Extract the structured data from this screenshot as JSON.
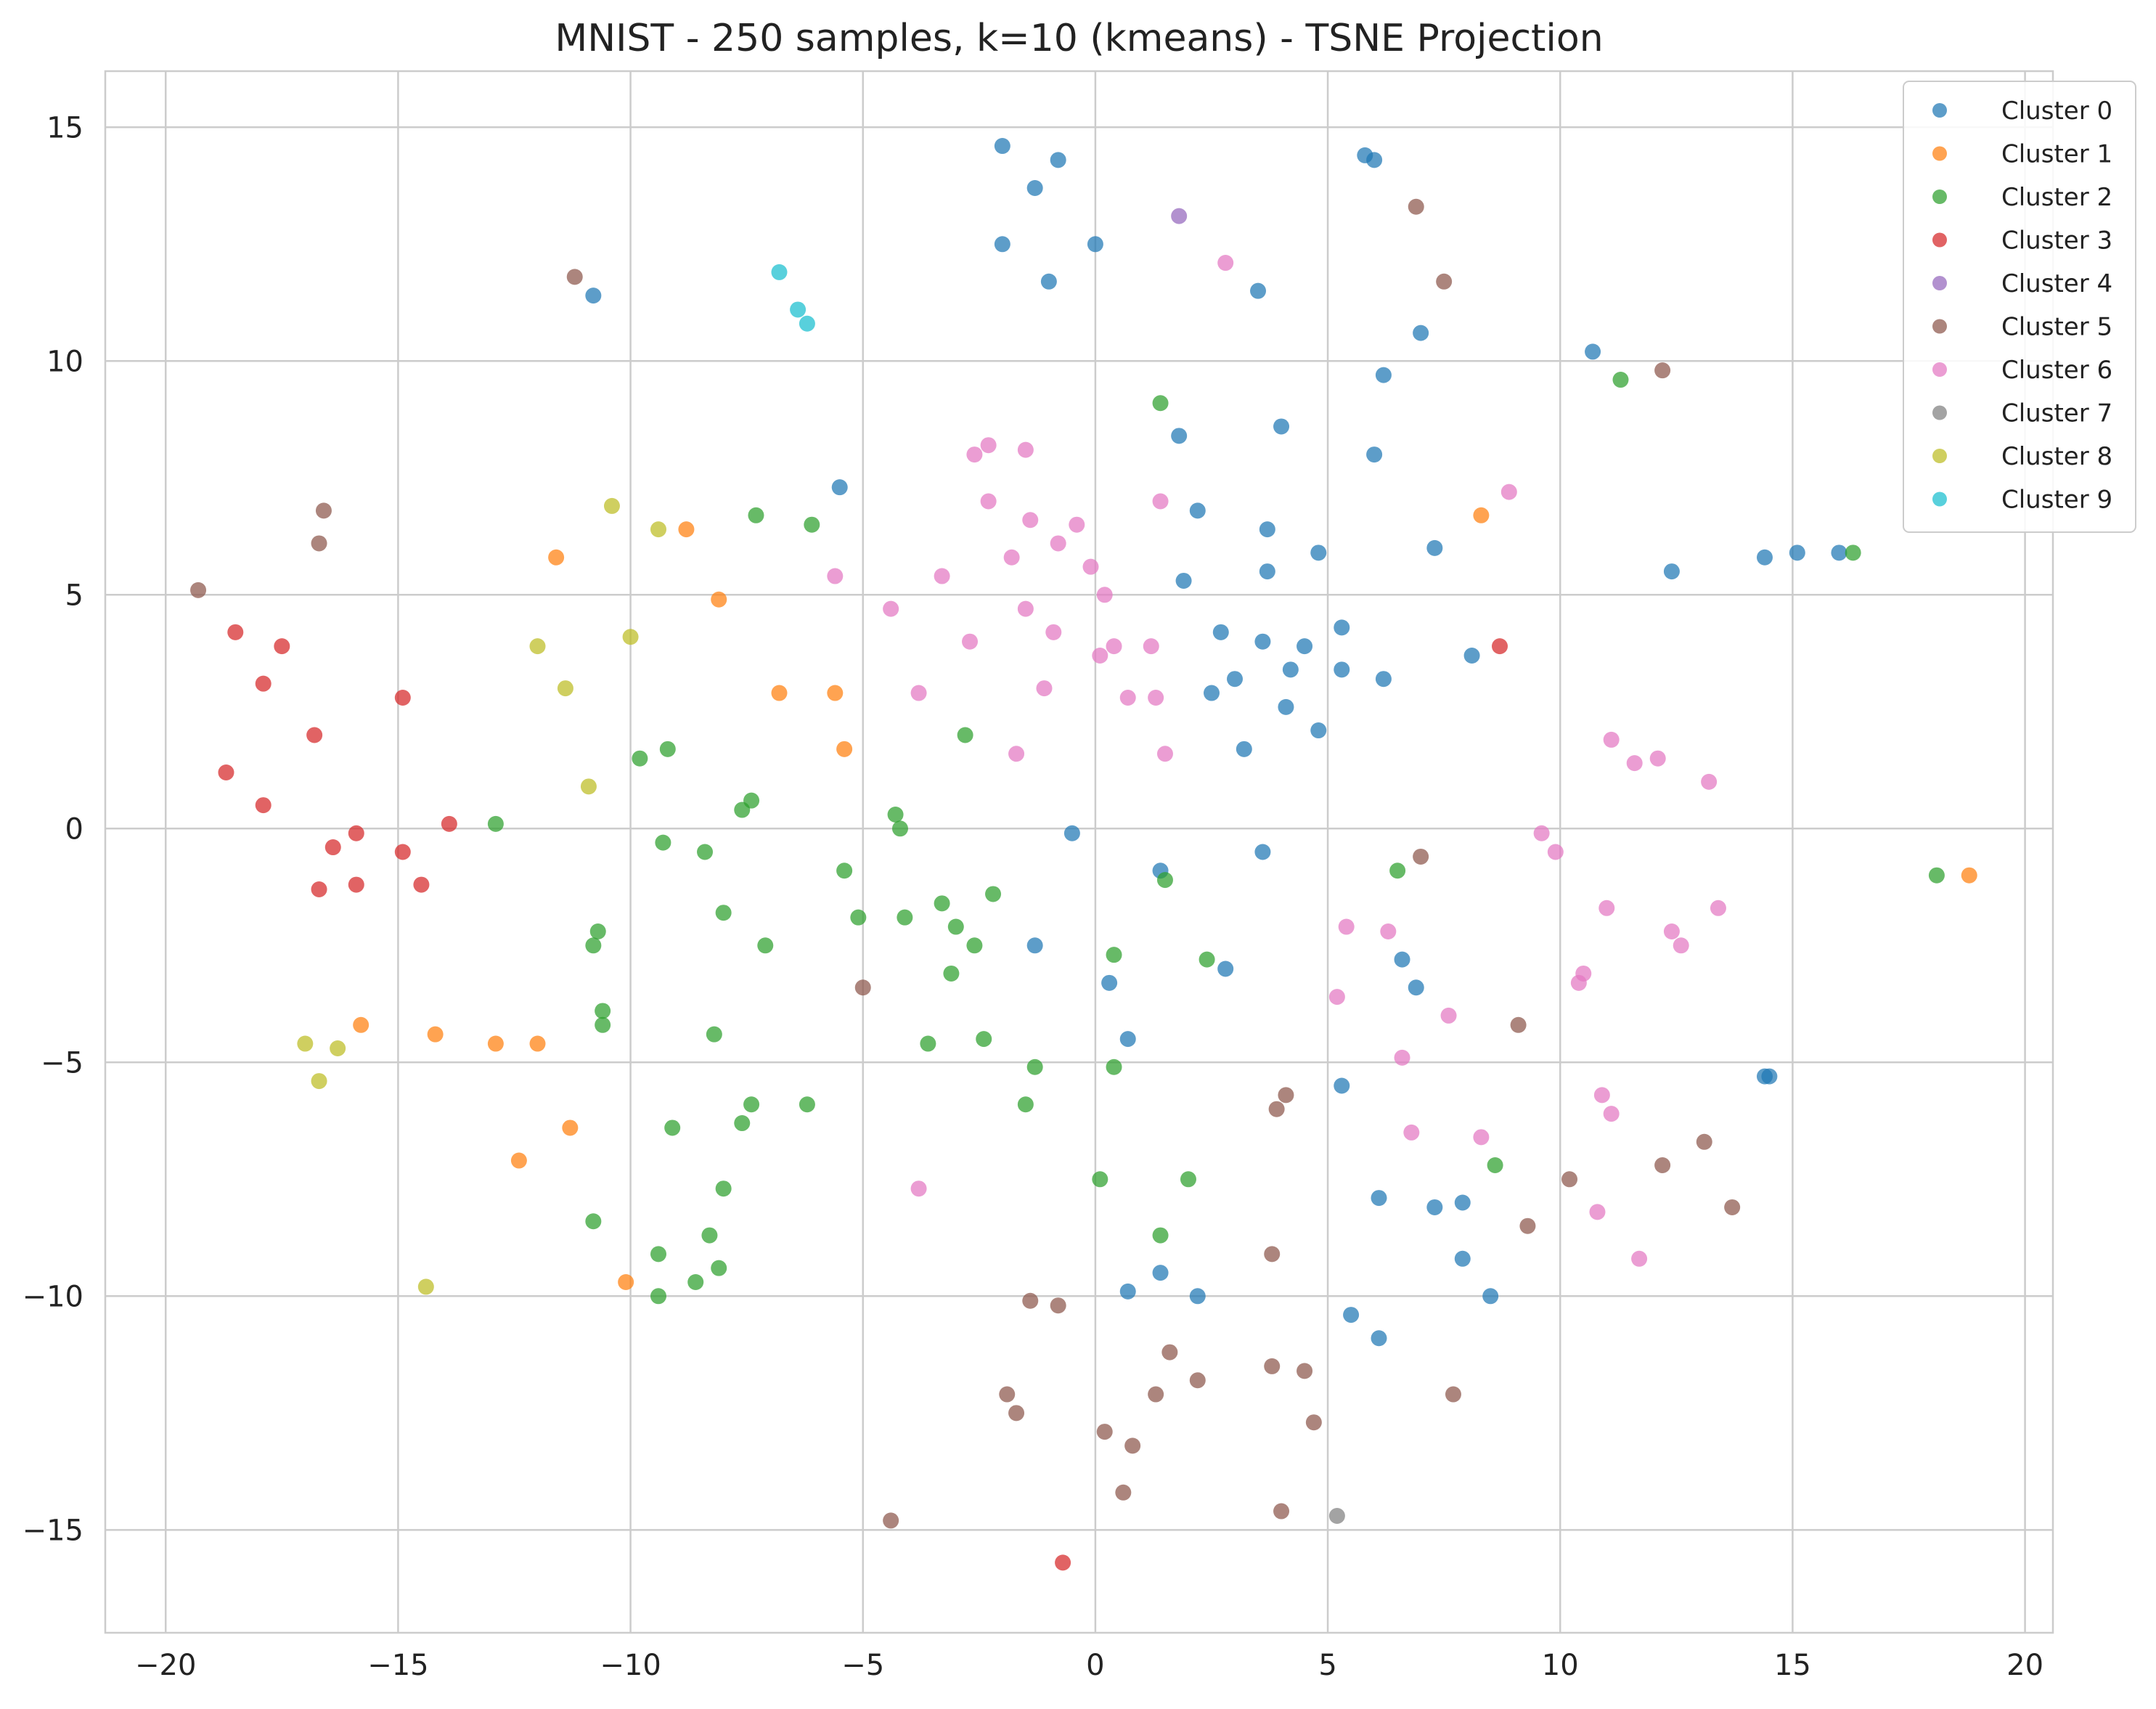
{
  "chart_data": {
    "type": "scatter",
    "title": "MNIST - 250 samples, k=10 (kmeans) - TSNE Projection",
    "xlabel": "",
    "ylabel": "",
    "xlim": [
      -21.3,
      20.6
    ],
    "ylim": [
      -17.2,
      16.2
    ],
    "xticks": [
      -20,
      -15,
      -10,
      -5,
      0,
      5,
      10,
      15,
      20
    ],
    "yticks": [
      -15,
      -10,
      -5,
      0,
      5,
      10,
      15
    ],
    "xtick_labels": [
      "−20",
      "−15",
      "−10",
      "−5",
      "0",
      "5",
      "10",
      "15",
      "20"
    ],
    "ytick_labels": [
      "−15",
      "−10",
      "−5",
      "0",
      "5",
      "10",
      "15"
    ],
    "grid": true,
    "legend_position": "top-right",
    "series": [
      {
        "name": "Cluster 0",
        "color": "#1f77b4",
        "points": [
          [
            -2.0,
            14.6
          ],
          [
            -0.8,
            14.3
          ],
          [
            -1.3,
            13.7
          ],
          [
            -2.0,
            12.5
          ],
          [
            0.0,
            12.5
          ],
          [
            -1.0,
            11.7
          ],
          [
            -10.8,
            11.4
          ],
          [
            -5.5,
            7.3
          ],
          [
            5.8,
            14.4
          ],
          [
            6.0,
            14.3
          ],
          [
            3.5,
            11.5
          ],
          [
            7.0,
            10.6
          ],
          [
            6.2,
            9.7
          ],
          [
            4.0,
            8.6
          ],
          [
            1.8,
            8.4
          ],
          [
            6.0,
            8.0
          ],
          [
            2.2,
            6.8
          ],
          [
            3.7,
            6.4
          ],
          [
            7.3,
            6.0
          ],
          [
            4.8,
            5.9
          ],
          [
            3.7,
            5.5
          ],
          [
            1.9,
            5.3
          ],
          [
            5.3,
            4.3
          ],
          [
            2.7,
            4.2
          ],
          [
            3.6,
            4.0
          ],
          [
            4.5,
            3.9
          ],
          [
            8.1,
            3.7
          ],
          [
            4.2,
            3.4
          ],
          [
            5.3,
            3.4
          ],
          [
            3.0,
            3.2
          ],
          [
            6.2,
            3.2
          ],
          [
            2.5,
            2.9
          ],
          [
            4.1,
            2.6
          ],
          [
            4.8,
            2.1
          ],
          [
            3.2,
            1.7
          ],
          [
            -0.5,
            -0.1
          ],
          [
            1.4,
            -0.9
          ],
          [
            3.6,
            -0.5
          ],
          [
            -1.3,
            -2.5
          ],
          [
            6.6,
            -2.8
          ],
          [
            2.8,
            -3.0
          ],
          [
            0.3,
            -3.3
          ],
          [
            6.9,
            -3.4
          ],
          [
            0.7,
            -4.5
          ],
          [
            5.3,
            -5.5
          ],
          [
            6.1,
            -7.9
          ],
          [
            7.3,
            -8.1
          ],
          [
            7.9,
            -8.0
          ],
          [
            7.9,
            -9.2
          ],
          [
            1.4,
            -9.5
          ],
          [
            0.7,
            -9.9
          ],
          [
            2.2,
            -10.0
          ],
          [
            8.5,
            -10.0
          ],
          [
            5.5,
            -10.4
          ],
          [
            6.1,
            -10.9
          ],
          [
            10.7,
            10.2
          ],
          [
            12.4,
            5.5
          ],
          [
            14.4,
            5.8
          ],
          [
            15.1,
            5.9
          ],
          [
            16.0,
            5.9
          ],
          [
            14.4,
            -5.3
          ],
          [
            14.5,
            -5.3
          ]
        ]
      },
      {
        "name": "Cluster 1",
        "color": "#ff7f0e",
        "points": [
          [
            -11.6,
            5.8
          ],
          [
            -8.8,
            6.4
          ],
          [
            -8.1,
            4.9
          ],
          [
            -6.8,
            2.9
          ],
          [
            -5.6,
            2.9
          ],
          [
            -5.4,
            1.7
          ],
          [
            8.3,
            6.7
          ],
          [
            -15.8,
            -4.2
          ],
          [
            -14.2,
            -4.4
          ],
          [
            -12.9,
            -4.6
          ],
          [
            -12.0,
            -4.6
          ],
          [
            -11.3,
            -6.4
          ],
          [
            -12.4,
            -7.1
          ],
          [
            -10.1,
            -9.7
          ],
          [
            18.8,
            -1.0
          ]
        ]
      },
      {
        "name": "Cluster 2",
        "color": "#2ca02c",
        "points": [
          [
            1.4,
            9.1
          ],
          [
            -7.3,
            6.7
          ],
          [
            -6.1,
            6.5
          ],
          [
            -2.8,
            2.0
          ],
          [
            -9.8,
            1.5
          ],
          [
            -9.2,
            1.7
          ],
          [
            -7.4,
            0.6
          ],
          [
            -7.6,
            0.4
          ],
          [
            -4.3,
            0.3
          ],
          [
            -4.2,
            0.0
          ],
          [
            -12.9,
            0.1
          ],
          [
            -9.3,
            -0.3
          ],
          [
            -8.4,
            -0.5
          ],
          [
            -5.4,
            -0.9
          ],
          [
            -3.3,
            -1.6
          ],
          [
            -2.2,
            -1.4
          ],
          [
            -8.0,
            -1.8
          ],
          [
            -5.1,
            -1.9
          ],
          [
            -4.1,
            -1.9
          ],
          [
            -3.0,
            -2.1
          ],
          [
            -7.1,
            -2.5
          ],
          [
            -2.6,
            -2.5
          ],
          [
            -10.7,
            -2.2
          ],
          [
            -10.8,
            -2.5
          ],
          [
            -3.1,
            -3.1
          ],
          [
            -10.6,
            -3.9
          ],
          [
            -10.6,
            -4.2
          ],
          [
            -8.2,
            -4.4
          ],
          [
            -3.6,
            -4.6
          ],
          [
            -2.4,
            -4.5
          ],
          [
            -1.3,
            -5.1
          ],
          [
            0.4,
            -5.1
          ],
          [
            0.4,
            -2.7
          ],
          [
            2.4,
            -2.8
          ],
          [
            1.5,
            -1.1
          ],
          [
            6.5,
            -0.9
          ],
          [
            -6.2,
            -5.9
          ],
          [
            -7.4,
            -5.9
          ],
          [
            -1.5,
            -5.9
          ],
          [
            -7.6,
            -6.3
          ],
          [
            -9.1,
            -6.4
          ],
          [
            0.1,
            -7.5
          ],
          [
            2.0,
            -7.5
          ],
          [
            8.6,
            -7.2
          ],
          [
            -8.0,
            -7.7
          ],
          [
            -10.8,
            -8.4
          ],
          [
            -8.3,
            -8.7
          ],
          [
            1.4,
            -8.7
          ],
          [
            -9.4,
            -9.1
          ],
          [
            -8.1,
            -9.4
          ],
          [
            -8.6,
            -9.7
          ],
          [
            -9.4,
            -10.0
          ],
          [
            11.3,
            9.6
          ],
          [
            16.3,
            5.9
          ],
          [
            18.1,
            -1.0
          ]
        ]
      },
      {
        "name": "Cluster 3",
        "color": "#d62728",
        "points": [
          [
            -18.5,
            4.2
          ],
          [
            -17.5,
            3.9
          ],
          [
            -17.9,
            3.1
          ],
          [
            -14.9,
            2.8
          ],
          [
            -16.8,
            2.0
          ],
          [
            -18.7,
            1.2
          ],
          [
            -17.9,
            0.5
          ],
          [
            -13.9,
            0.1
          ],
          [
            -15.9,
            -0.1
          ],
          [
            -16.4,
            -0.4
          ],
          [
            -14.9,
            -0.5
          ],
          [
            -16.7,
            -1.3
          ],
          [
            -15.9,
            -1.2
          ],
          [
            -14.5,
            -1.2
          ],
          [
            8.7,
            3.9
          ],
          [
            -0.7,
            -15.7
          ]
        ]
      },
      {
        "name": "Cluster 4",
        "color": "#9467bd",
        "points": [
          [
            1.8,
            13.1
          ]
        ]
      },
      {
        "name": "Cluster 5",
        "color": "#8c564b",
        "points": [
          [
            -11.2,
            11.8
          ],
          [
            -16.6,
            6.8
          ],
          [
            -16.7,
            6.1
          ],
          [
            -19.3,
            5.1
          ],
          [
            6.9,
            13.3
          ],
          [
            7.5,
            11.7
          ],
          [
            12.2,
            9.8
          ],
          [
            7.0,
            -0.6
          ],
          [
            -5.0,
            -3.4
          ],
          [
            9.1,
            -4.2
          ],
          [
            4.1,
            -5.7
          ],
          [
            3.9,
            -6.0
          ],
          [
            13.1,
            -6.7
          ],
          [
            12.2,
            -7.2
          ],
          [
            10.2,
            -7.5
          ],
          [
            13.7,
            -8.1
          ],
          [
            9.3,
            -8.5
          ],
          [
            3.8,
            -9.1
          ],
          [
            -1.4,
            -10.1
          ],
          [
            -0.8,
            -10.2
          ],
          [
            1.6,
            -11.2
          ],
          [
            3.8,
            -11.5
          ],
          [
            4.5,
            -11.6
          ],
          [
            2.2,
            -11.8
          ],
          [
            -1.9,
            -12.1
          ],
          [
            1.3,
            -12.1
          ],
          [
            7.7,
            -12.1
          ],
          [
            -1.7,
            -12.5
          ],
          [
            4.7,
            -12.7
          ],
          [
            0.2,
            -12.9
          ],
          [
            0.8,
            -13.2
          ],
          [
            0.6,
            -14.2
          ],
          [
            -4.4,
            -14.8
          ],
          [
            4.0,
            -14.6
          ]
        ]
      },
      {
        "name": "Cluster 6",
        "color": "#e377c2",
        "points": [
          [
            2.8,
            12.1
          ],
          [
            -2.3,
            8.2
          ],
          [
            -2.6,
            8.0
          ],
          [
            -1.5,
            8.1
          ],
          [
            -2.3,
            7.0
          ],
          [
            1.4,
            7.0
          ],
          [
            -1.4,
            6.6
          ],
          [
            -0.4,
            6.5
          ],
          [
            -0.8,
            6.1
          ],
          [
            -1.8,
            5.8
          ],
          [
            -5.6,
            5.4
          ],
          [
            -3.3,
            5.4
          ],
          [
            -0.1,
            5.6
          ],
          [
            0.2,
            5.0
          ],
          [
            -4.4,
            4.7
          ],
          [
            -1.5,
            4.7
          ],
          [
            -0.9,
            4.2
          ],
          [
            -2.7,
            4.0
          ],
          [
            0.4,
            3.9
          ],
          [
            1.2,
            3.9
          ],
          [
            0.1,
            3.7
          ],
          [
            -1.1,
            3.0
          ],
          [
            -3.8,
            2.9
          ],
          [
            0.7,
            2.8
          ],
          [
            1.3,
            2.8
          ],
          [
            -1.7,
            1.6
          ],
          [
            1.5,
            1.6
          ],
          [
            8.9,
            7.2
          ],
          [
            11.1,
            1.9
          ],
          [
            11.6,
            1.4
          ],
          [
            12.1,
            1.5
          ],
          [
            13.2,
            1.0
          ],
          [
            9.6,
            -0.1
          ],
          [
            9.9,
            -0.5
          ],
          [
            5.4,
            -2.1
          ],
          [
            6.3,
            -2.2
          ],
          [
            11.0,
            -1.7
          ],
          [
            12.4,
            -2.2
          ],
          [
            12.6,
            -2.5
          ],
          [
            13.4,
            -1.7
          ],
          [
            10.5,
            -3.1
          ],
          [
            10.4,
            -3.3
          ],
          [
            5.2,
            -3.6
          ],
          [
            7.6,
            -4.0
          ],
          [
            6.6,
            -4.9
          ],
          [
            10.9,
            -5.7
          ],
          [
            11.1,
            -6.1
          ],
          [
            6.8,
            -6.5
          ],
          [
            8.3,
            -6.6
          ],
          [
            10.8,
            -8.2
          ],
          [
            11.7,
            -9.2
          ],
          [
            -3.8,
            -7.7
          ]
        ]
      },
      {
        "name": "Cluster 7",
        "color": "#7f7f7f",
        "points": [
          [
            5.2,
            -14.7
          ]
        ]
      },
      {
        "name": "Cluster 8",
        "color": "#bcbd22",
        "points": [
          [
            -10.4,
            6.9
          ],
          [
            -9.4,
            6.4
          ],
          [
            -12.0,
            3.9
          ],
          [
            -10.0,
            4.1
          ],
          [
            -11.4,
            3.0
          ],
          [
            -10.9,
            0.9
          ],
          [
            -17.0,
            -4.6
          ],
          [
            -16.3,
            -4.7
          ],
          [
            -16.7,
            -5.4
          ],
          [
            -14.4,
            -9.8
          ]
        ]
      },
      {
        "name": "Cluster 9",
        "color": "#17becf",
        "points": [
          [
            -6.8,
            11.9
          ],
          [
            -6.4,
            11.1
          ],
          [
            -6.2,
            10.8
          ]
        ]
      }
    ]
  }
}
